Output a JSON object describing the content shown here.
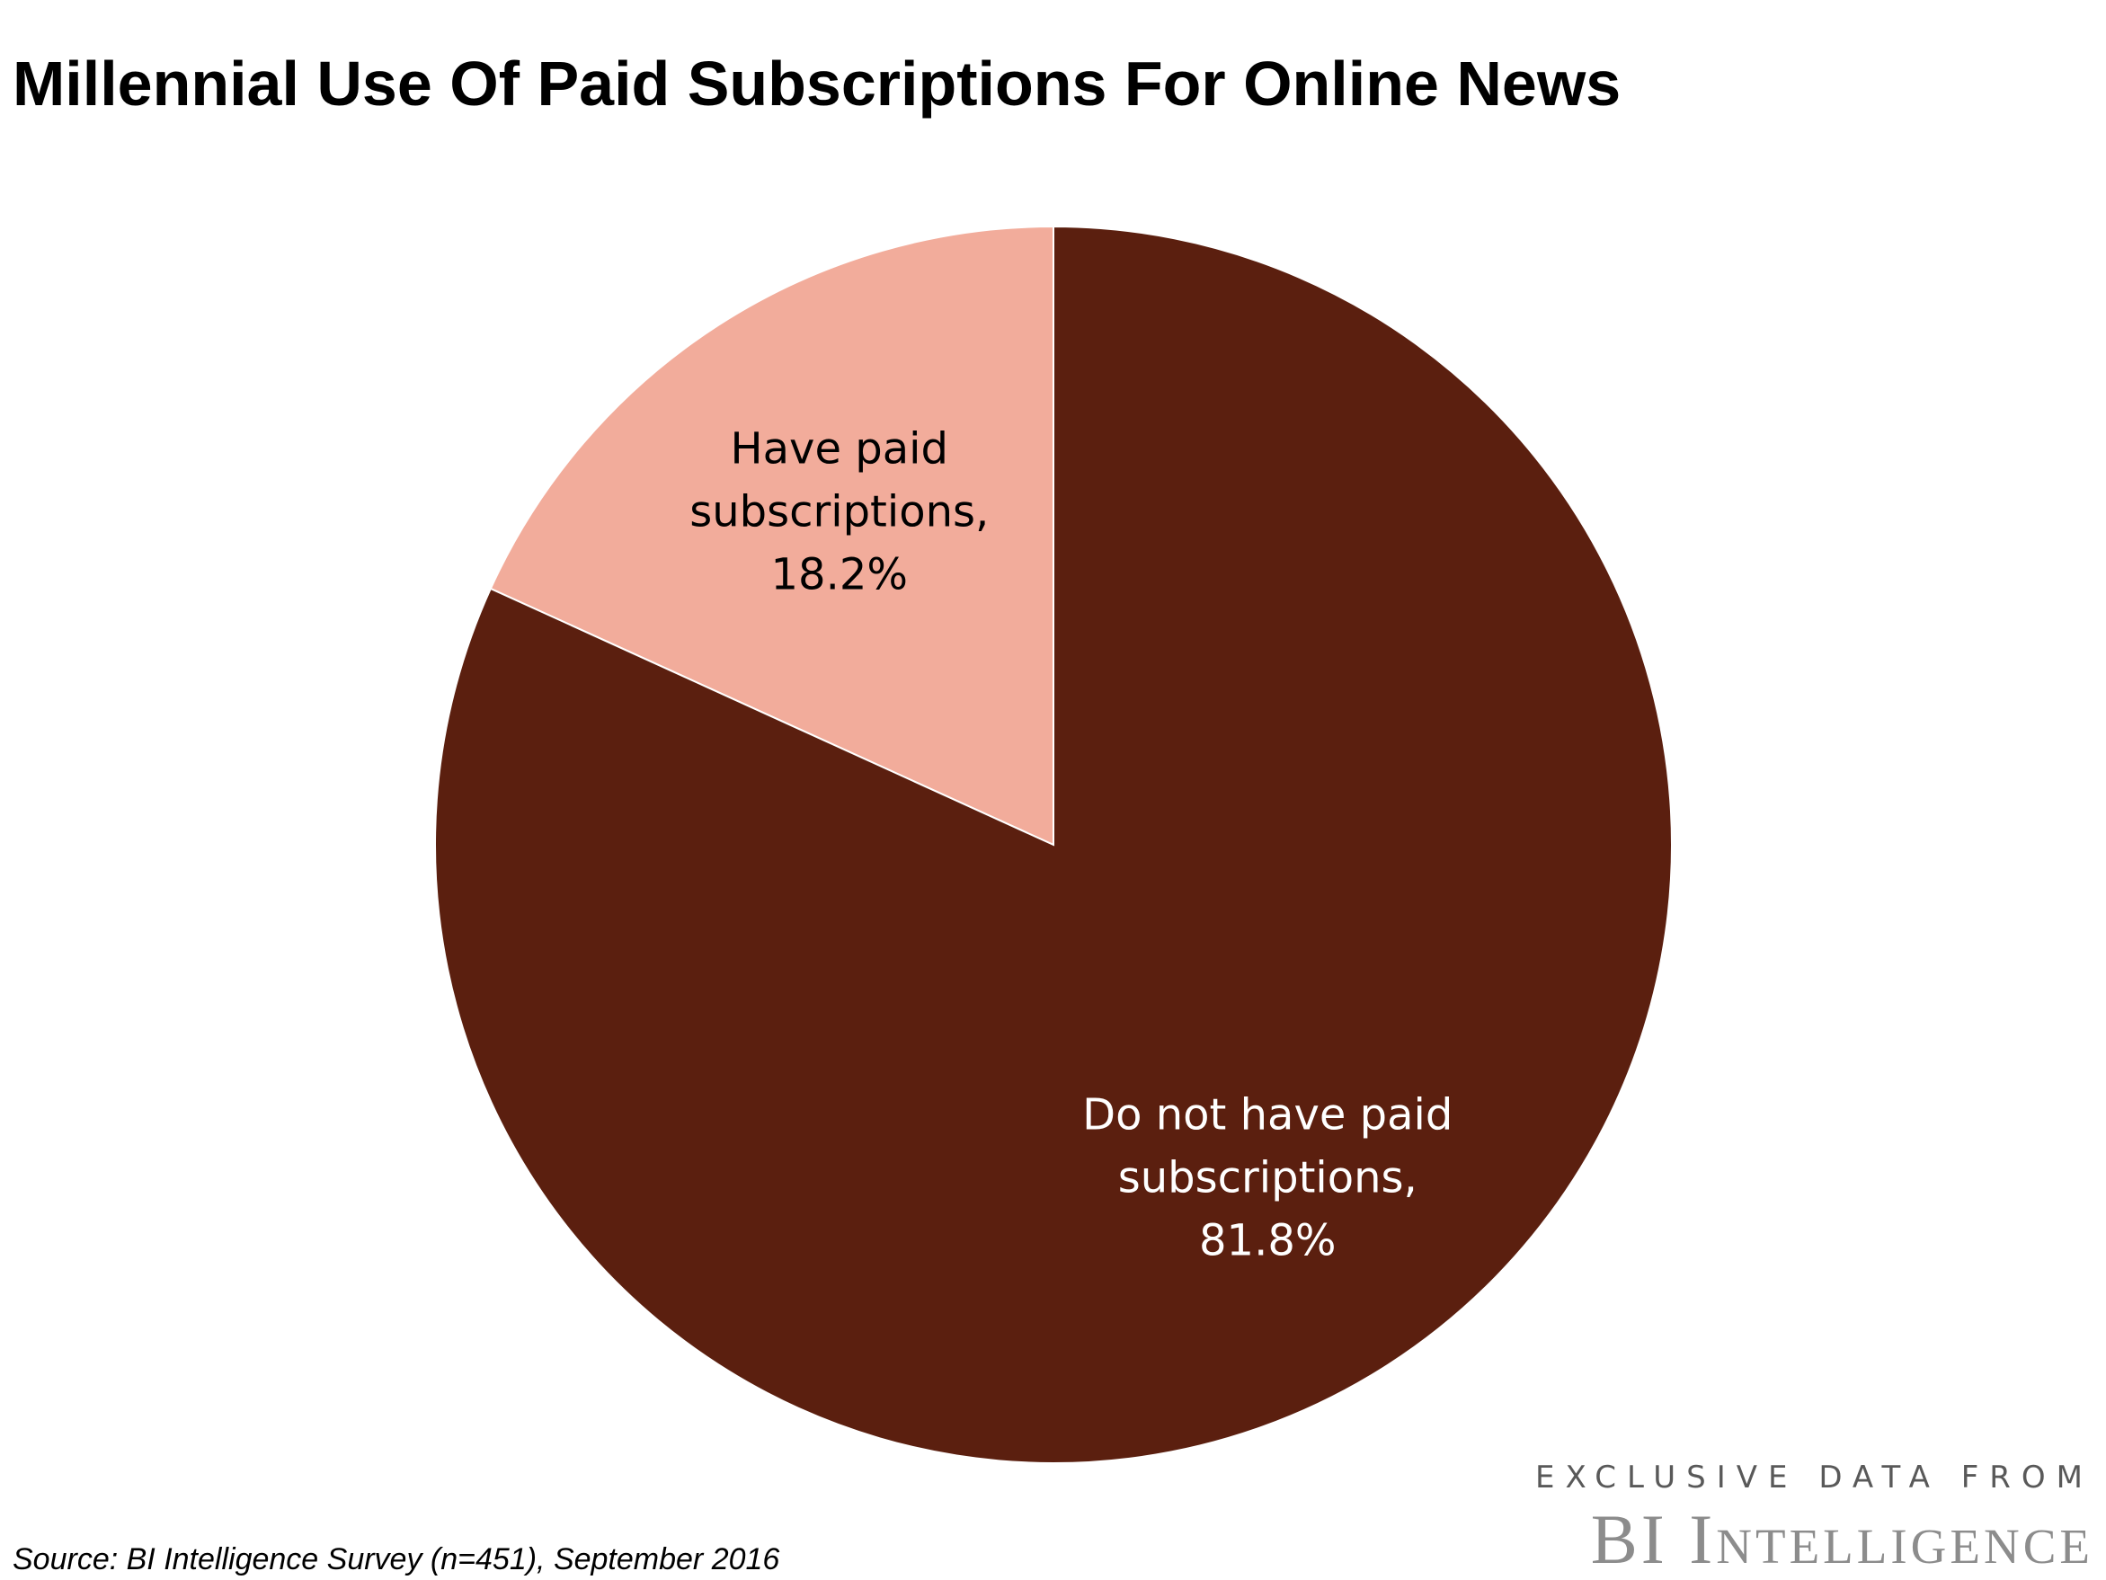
{
  "chart_data": {
    "type": "pie",
    "title": "Millennial Use Of Paid Subscriptions For Online News",
    "slices": [
      {
        "label_lines": [
          "Have paid",
          "subscriptions,",
          "18.2%"
        ],
        "value": 18.2,
        "color": "#f2ac9b",
        "label_color": "#000000"
      },
      {
        "label_lines": [
          "Do not have paid",
          "subscriptions,",
          "81.8%"
        ],
        "value": 81.8,
        "color": "#5b1f0f",
        "label_color": "#ffffff"
      }
    ],
    "start_angle": "12 o'clock",
    "direction": "counter-clockwise",
    "legend": "none"
  },
  "footer": {
    "source": "Source: BI Intelligence Survey (n=451), September 2016",
    "brand_tagline": "EXCLUSIVE DATA FROM",
    "brand_name": "BI Intelligence"
  }
}
